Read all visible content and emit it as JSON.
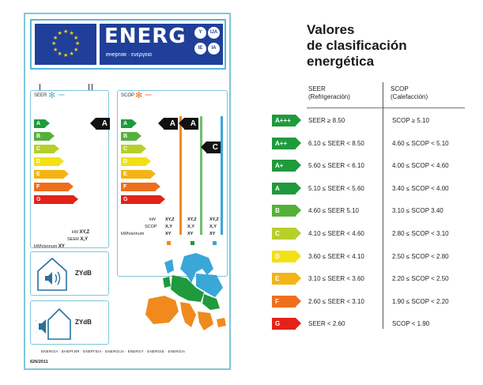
{
  "label": {
    "brand_word": "ENERG",
    "brand_sub": "енергия · ενεργεια",
    "lang_bubbles": [
      "Y",
      "IJA",
      "IE",
      "IA"
    ],
    "seer_title": "SEER",
    "scop_title": "SCOP",
    "classes": [
      {
        "letter": "A",
        "color": "#1f9a3c"
      },
      {
        "letter": "B",
        "color": "#55b03a"
      },
      {
        "letter": "C",
        "color": "#b7cf2a"
      },
      {
        "letter": "D",
        "color": "#f3e114"
      },
      {
        "letter": "E",
        "color": "#f4b416"
      },
      {
        "letter": "F",
        "color": "#ee6f1e"
      },
      {
        "letter": "G",
        "color": "#e2231a"
      }
    ],
    "seer_rating": "A",
    "scop_ratings": [
      "A",
      "A",
      "C"
    ],
    "seer_kw_label": "kW",
    "seer_kw_value": "XY,Z",
    "seer_label": "SEER",
    "seer_value": "X,Y",
    "seer_kwh_label": "kWh/annum",
    "seer_kwh_value": "XY",
    "scop_kw_label": "kW",
    "scop_label": "SCOP",
    "scop_kwh_label": "kWh/annum",
    "scop_cols": [
      {
        "kw": "XY,Z",
        "scop": "X,Y",
        "kwh": "XY"
      },
      {
        "kw": "XY,Z",
        "scop": "X,Y",
        "kwh": "XY"
      },
      {
        "kw": "XY,Z",
        "scop": "X,Y",
        "kwh": "XY"
      }
    ],
    "zone_colors": [
      "#f08a1d",
      "#1f9a3c",
      "#3aa7d8"
    ],
    "indoor_db": "ZYdB",
    "outdoor_db": "ZYdB",
    "footer_words": "ENERGIA · ЕНЕРГИЯ · ΕΝΕΡΓΕΙΑ · ENERGIJA · ENERGY · ENERGIE · ENERGIA",
    "regulation": "626/2011"
  },
  "table": {
    "title_lines": [
      "Valores",
      "de clasificación",
      "energética"
    ],
    "seer_head_1": "SEER",
    "seer_head_2": "(Refrigeración)",
    "scop_head_1": "SCOP",
    "scop_head_2": "(Calefacción)",
    "rows": [
      {
        "class": "A+++",
        "color": "#1f9a3c",
        "seer": "SEER ≥ 8.50",
        "scop": "SCOP ≥ 5.10"
      },
      {
        "class": "A++",
        "color": "#1f9a3c",
        "seer": "6.10 ≤ SEER < 8.50",
        "scop": "4.60 ≤ SCOP < 5.10"
      },
      {
        "class": "A+",
        "color": "#1f9a3c",
        "seer": "5.60 ≤ SEER < 6.10",
        "scop": "4.00 ≤ SCOP < 4.60"
      },
      {
        "class": "A",
        "color": "#1f9a3c",
        "seer": "5.10 ≤ SEER < 5.60",
        "scop": "3.40 ≤ SCOP < 4.00"
      },
      {
        "class": "B",
        "color": "#55b03a",
        "seer": "4.60 ≤ SEER 5.10",
        "scop": "3.10 ≤ SCOP 3.40"
      },
      {
        "class": "C",
        "color": "#b7cf2a",
        "seer": "4.10 ≤ SEER < 4.60",
        "scop": "2.80 ≤ SCOP < 3.10"
      },
      {
        "class": "D",
        "color": "#f3e114",
        "seer": "3.60 ≤ SEER < 4.10",
        "scop": "2.50 ≤ SCOP < 2.80"
      },
      {
        "class": "E",
        "color": "#f4b416",
        "seer": "3.10 ≤ SEER < 3.60",
        "scop": "2.20 ≤ SCOP < 2.50"
      },
      {
        "class": "F",
        "color": "#ee6f1e",
        "seer": "2.60 ≤ SEER < 3.10",
        "scop": "1.90 ≤ SCOP < 2.20"
      },
      {
        "class": "G",
        "color": "#e2231a",
        "seer": "SEER < 2.60",
        "scop": "SCOP < 1.90"
      }
    ]
  }
}
